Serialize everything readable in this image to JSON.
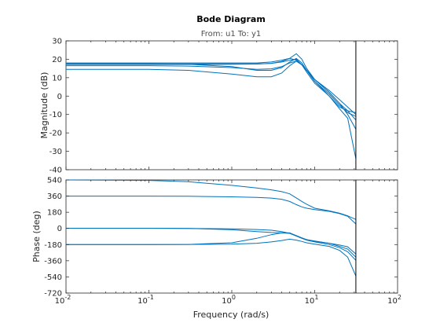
{
  "chart_data": {
    "type": "line",
    "title": "Bode Diagram",
    "subtitle": "From: u1  To: y1",
    "xlabel": "Frequency  (rad/s)",
    "xscale": "log",
    "xlim": [
      0.01,
      100
    ],
    "x_tick_labels": [
      {
        "base": "10",
        "exp": "-2"
      },
      {
        "base": "10",
        "exp": "-1"
      },
      {
        "base": "10",
        "exp": "0"
      },
      {
        "base": "10",
        "exp": "1"
      },
      {
        "base": "10",
        "exp": "2"
      }
    ],
    "line_color": "#0072bd",
    "nyquist_frequency": 31.4,
    "grid": false,
    "x": [
      0.01,
      0.1,
      0.3,
      1,
      2,
      3,
      4,
      5,
      6,
      7,
      8,
      10,
      15,
      20,
      25,
      31.4
    ],
    "panels": [
      {
        "ylabel": "Magnitude (dB)",
        "ylim": [
          -40,
          30
        ],
        "y_ticks": [
          -40,
          -30,
          -20,
          -10,
          0,
          10,
          20,
          30
        ],
        "series": [
          {
            "values": [
              17.5,
              17.5,
              17.5,
              17.5,
              17.5,
              17.8,
              18.5,
              19.5,
              20,
              17,
              14,
              9,
              2,
              -4,
              -8,
              -13
            ]
          },
          {
            "values": [
              17.2,
              17.2,
              17.2,
              17.3,
              17.4,
              17.8,
              18.8,
              20.5,
              23,
              20,
              15,
              9,
              3,
              -2,
              -6,
              -10
            ]
          },
          {
            "values": [
              18,
              18,
              18,
              18,
              18,
              18.5,
              19.5,
              20.5,
              19.5,
              17,
              14,
              9,
              2,
              -4,
              -10,
              -18
            ]
          },
          {
            "values": [
              16.5,
              16.5,
              16.3,
              15.5,
              14.5,
              14.8,
              16,
              18,
              19,
              17,
              14,
              8,
              1,
              -5,
              -9,
              -11
            ]
          },
          {
            "values": [
              17.5,
              17.5,
              17.3,
              16,
              14,
              14,
              15.5,
              18.5,
              20.5,
              18,
              14,
              8,
              0,
              -7,
              -12,
              -34
            ]
          },
          {
            "values": [
              14.5,
              14.5,
              14,
              12,
              10.5,
              10.5,
              12.5,
              16.5,
              19,
              17,
              13,
              7,
              0,
              -6,
              -8,
              -9
            ]
          }
        ]
      },
      {
        "ylabel": "Phase (deg)",
        "ylim": [
          -720,
          540
        ],
        "y_ticks": [
          -720,
          -540,
          -360,
          -180,
          0,
          180,
          360,
          540
        ],
        "series": [
          {
            "values": [
              540,
              535,
              520,
              480,
              450,
              430,
              410,
              385,
              340,
              300,
              270,
              225,
              195,
              170,
              140,
              100
            ]
          },
          {
            "values": [
              360,
              360,
              358,
              352,
              345,
              338,
              325,
              300,
              265,
              240,
              225,
              210,
              190,
              165,
              135,
              50
            ]
          },
          {
            "values": [
              2,
              2,
              0,
              -5,
              -12,
              -20,
              -35,
              -55,
              -85,
              -110,
              -125,
              -145,
              -165,
              -185,
              -205,
              -285
            ]
          },
          {
            "values": [
              2,
              2,
              0,
              -15,
              -35,
              -45,
              -50,
              -55,
              -80,
              -105,
              -125,
              -140,
              -165,
              -200,
              -230,
              -320
            ]
          },
          {
            "values": [
              -180,
              -180,
              -178,
              -160,
              -110,
              -70,
              -50,
              -50,
              -80,
              -110,
              -130,
              -150,
              -180,
              -215,
              -260,
              -355
            ]
          },
          {
            "values": [
              -180,
              -180,
              -178,
              -175,
              -165,
              -150,
              -135,
              -120,
              -130,
              -145,
              -160,
              -175,
              -200,
              -245,
              -320,
              -530
            ]
          }
        ]
      }
    ]
  }
}
